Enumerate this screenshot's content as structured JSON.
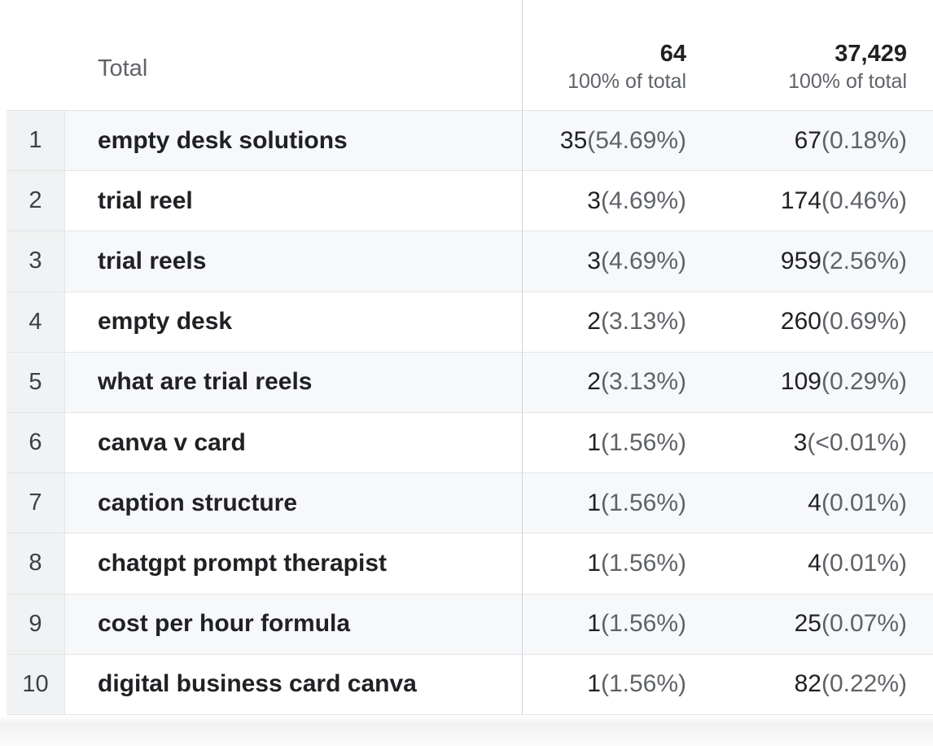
{
  "colors": {
    "text_primary": "#202124",
    "text_secondary": "#5f6368",
    "row_stripe": "#f7f8f9",
    "rank_column_bg": "#f0f2f3",
    "row_border": "#e2e4e6",
    "column_divider": "#d3d6d9"
  },
  "table": {
    "header": {
      "dimension_label": "Total",
      "metrics": [
        {
          "value": "64",
          "subtitle": "100% of total"
        },
        {
          "value": "37,429",
          "subtitle": "100% of total"
        }
      ]
    },
    "rows": [
      {
        "rank": "1",
        "term": "empty desk solutions",
        "metric1_value": "35",
        "metric1_pct": "(54.69%)",
        "metric2_value": "67",
        "metric2_pct": "(0.18%)"
      },
      {
        "rank": "2",
        "term": "trial reel",
        "metric1_value": "3",
        "metric1_pct": "(4.69%)",
        "metric2_value": "174",
        "metric2_pct": "(0.46%)"
      },
      {
        "rank": "3",
        "term": "trial reels",
        "metric1_value": "3",
        "metric1_pct": "(4.69%)",
        "metric2_value": "959",
        "metric2_pct": "(2.56%)"
      },
      {
        "rank": "4",
        "term": "empty desk",
        "metric1_value": "2",
        "metric1_pct": "(3.13%)",
        "metric2_value": "260",
        "metric2_pct": "(0.69%)"
      },
      {
        "rank": "5",
        "term": "what are trial reels",
        "metric1_value": "2",
        "metric1_pct": "(3.13%)",
        "metric2_value": "109",
        "metric2_pct": "(0.29%)"
      },
      {
        "rank": "6",
        "term": "canva v card",
        "metric1_value": "1",
        "metric1_pct": "(1.56%)",
        "metric2_value": "3",
        "metric2_pct": "(<0.01%)"
      },
      {
        "rank": "7",
        "term": "caption structure",
        "metric1_value": "1",
        "metric1_pct": "(1.56%)",
        "metric2_value": "4",
        "metric2_pct": "(0.01%)"
      },
      {
        "rank": "8",
        "term": "chatgpt prompt therapist",
        "metric1_value": "1",
        "metric1_pct": "(1.56%)",
        "metric2_value": "4",
        "metric2_pct": "(0.01%)"
      },
      {
        "rank": "9",
        "term": "cost per hour formula",
        "metric1_value": "1",
        "metric1_pct": "(1.56%)",
        "metric2_value": "25",
        "metric2_pct": "(0.07%)"
      },
      {
        "rank": "10",
        "term": "digital business card canva",
        "metric1_value": "1",
        "metric1_pct": "(1.56%)",
        "metric2_value": "82",
        "metric2_pct": "(0.22%)"
      }
    ]
  }
}
